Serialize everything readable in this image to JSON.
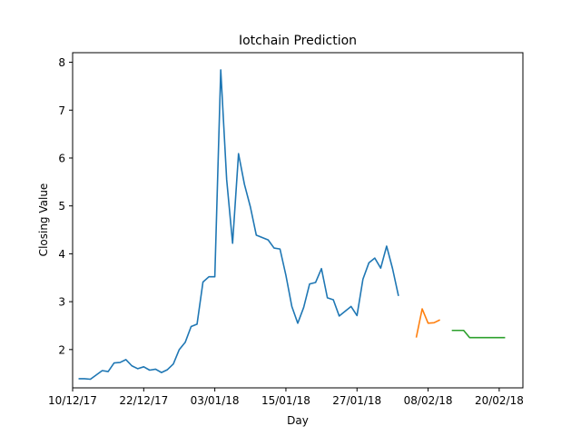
{
  "chart_data": {
    "type": "line",
    "title": "Iotchain Prediction",
    "xlabel": "Day",
    "ylabel": "Closing Value",
    "x_tick_labels": [
      "10/12/17",
      "22/12/17",
      "03/01/18",
      "15/01/18",
      "27/01/18",
      "08/02/18",
      "20/02/18"
    ],
    "y_tick_labels": [
      "2",
      "3",
      "4",
      "5",
      "6",
      "7",
      "8"
    ],
    "y_ticks": [
      2,
      3,
      4,
      5,
      6,
      7,
      8
    ],
    "ylim": [
      1.2,
      8.2
    ],
    "xlim": [
      "2017-12-10",
      "2018-02-24"
    ],
    "grid": false,
    "legend": "none",
    "colors": {
      "series1": "#1f77b4",
      "series2": "#ff7f0e",
      "series3": "#2ca02c"
    },
    "series": [
      {
        "x": [
          "2017-12-11",
          "2017-12-12",
          "2017-12-13",
          "2017-12-14",
          "2017-12-15",
          "2017-12-16",
          "2017-12-17",
          "2017-12-18",
          "2017-12-19",
          "2017-12-20",
          "2017-12-21",
          "2017-12-22",
          "2017-12-23",
          "2017-12-24",
          "2017-12-25",
          "2017-12-26",
          "2017-12-27",
          "2017-12-28",
          "2017-12-29",
          "2017-12-30",
          "2017-12-31",
          "2018-01-01",
          "2018-01-02",
          "2018-01-03",
          "2018-01-04",
          "2018-01-05",
          "2018-01-06",
          "2018-01-07",
          "2018-01-08",
          "2018-01-09",
          "2018-01-10",
          "2018-01-11",
          "2018-01-12",
          "2018-01-13",
          "2018-01-14",
          "2018-01-15",
          "2018-01-16",
          "2018-01-17",
          "2018-01-18",
          "2018-01-19",
          "2018-01-20",
          "2018-01-21",
          "2018-01-22",
          "2018-01-23",
          "2018-01-24",
          "2018-01-25",
          "2018-01-26",
          "2018-01-27",
          "2018-01-28",
          "2018-01-29",
          "2018-01-30",
          "2018-01-31",
          "2018-02-01",
          "2018-02-02",
          "2018-02-03"
        ],
        "values": [
          1.39,
          1.39,
          1.38,
          1.47,
          1.56,
          1.54,
          1.72,
          1.73,
          1.79,
          1.66,
          1.6,
          1.64,
          1.57,
          1.59,
          1.52,
          1.58,
          1.7,
          2.0,
          2.15,
          2.48,
          2.53,
          3.41,
          3.52,
          3.52,
          7.84,
          5.55,
          4.22,
          6.09,
          5.45,
          4.98,
          4.39,
          4.34,
          4.29,
          4.12,
          4.1,
          3.55,
          2.9,
          2.55,
          2.88,
          3.37,
          3.4,
          3.69,
          3.08,
          3.04,
          2.7,
          2.8,
          2.9,
          2.71,
          3.47,
          3.81,
          3.91,
          3.7,
          4.16,
          3.69,
          3.12
        ]
      },
      {
        "x": [
          "2018-02-06",
          "2018-02-07",
          "2018-02-08",
          "2018-02-09",
          "2018-02-10"
        ],
        "values": [
          2.25,
          2.85,
          2.55,
          2.56,
          2.62
        ]
      },
      {
        "x": [
          "2018-02-12",
          "2018-02-13",
          "2018-02-14",
          "2018-02-15",
          "2018-02-16",
          "2018-02-17",
          "2018-02-18",
          "2018-02-19",
          "2018-02-20",
          "2018-02-21"
        ],
        "values": [
          2.4,
          2.4,
          2.4,
          2.25,
          2.25,
          2.25,
          2.25,
          2.25,
          2.25,
          2.25
        ]
      }
    ]
  }
}
